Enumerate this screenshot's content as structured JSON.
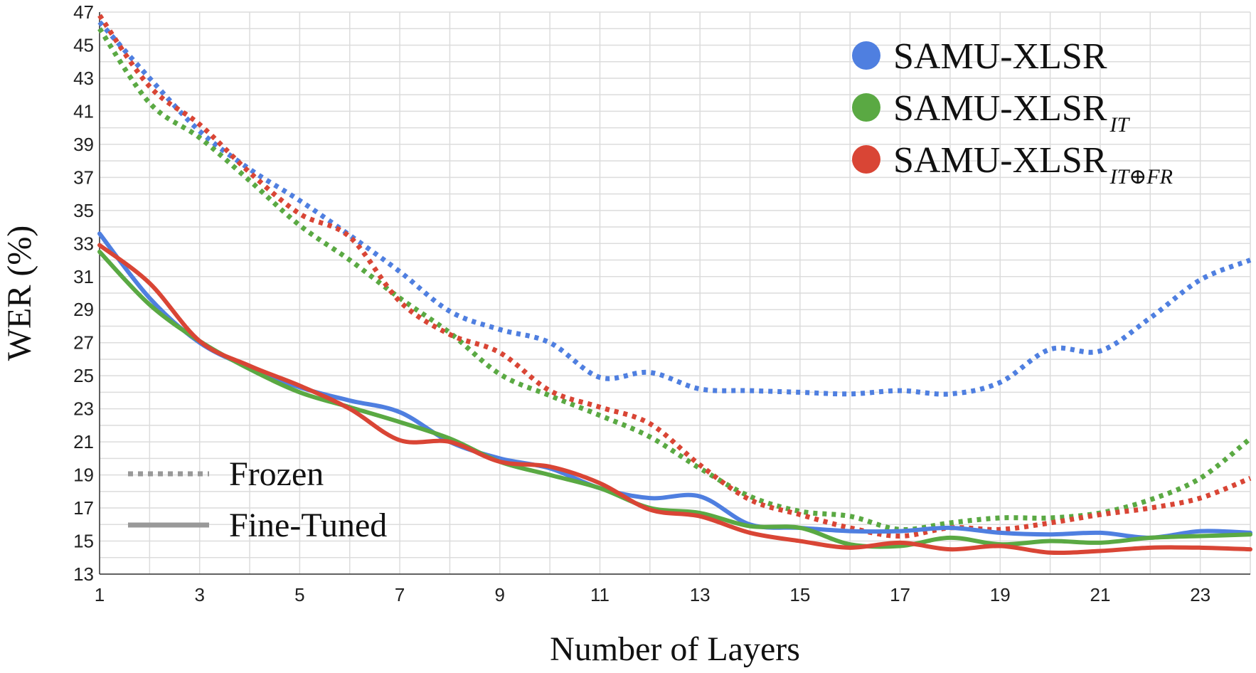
{
  "chart_data": {
    "type": "line",
    "title": "",
    "xlabel": "Number of Layers",
    "ylabel": "WER (%)",
    "xlim": [
      1,
      24
    ],
    "ylim": [
      13,
      47
    ],
    "xticks": [
      1,
      3,
      5,
      7,
      9,
      11,
      13,
      15,
      17,
      19,
      21,
      23
    ],
    "yticks": [
      13,
      15,
      17,
      19,
      21,
      23,
      25,
      27,
      29,
      31,
      33,
      35,
      37,
      39,
      41,
      43,
      45,
      47
    ],
    "grid": true,
    "x": [
      1,
      2,
      3,
      4,
      5,
      6,
      7,
      8,
      9,
      10,
      11,
      12,
      13,
      14,
      15,
      16,
      17,
      18,
      19,
      20,
      21,
      22,
      23,
      24
    ],
    "series": [
      {
        "name": "SAMU-XLSR",
        "label_main": "SAMU-XLSR",
        "label_sub": "",
        "mode": "Frozen",
        "color": "#4f7fe0",
        "values": [
          46.4,
          43.0,
          39.8,
          37.5,
          35.6,
          33.5,
          31.3,
          28.9,
          27.8,
          27.0,
          24.9,
          25.2,
          24.2,
          24.1,
          24.0,
          23.9,
          24.1,
          23.9,
          24.6,
          26.6,
          26.5,
          28.5,
          30.8,
          32.0
        ]
      },
      {
        "name": "SAMU-XLSR_IT",
        "label_main": "SAMU-XLSR",
        "label_sub": "IT",
        "mode": "Frozen",
        "color": "#5aa943",
        "values": [
          46.0,
          41.5,
          39.4,
          36.8,
          34.1,
          32.0,
          29.7,
          27.6,
          25.1,
          23.8,
          22.6,
          21.3,
          19.4,
          17.7,
          16.8,
          16.5,
          15.7,
          16.1,
          16.4,
          16.4,
          16.7,
          17.5,
          18.8,
          21.2
        ]
      },
      {
        "name": "SAMU-XLSR_IT⊕FR",
        "label_main": "SAMU-XLSR",
        "label_sub": "IT⊕FR",
        "mode": "Frozen",
        "color": "#d94535",
        "values": [
          46.8,
          42.5,
          40.2,
          37.3,
          34.8,
          33.4,
          29.5,
          27.5,
          26.4,
          24.1,
          23.1,
          22.1,
          19.6,
          17.5,
          16.6,
          15.8,
          15.3,
          15.8,
          15.7,
          16.1,
          16.6,
          17.0,
          17.6,
          18.8
        ]
      },
      {
        "name": "SAMU-XLSR",
        "label_main": "SAMU-XLSR",
        "label_sub": "",
        "mode": "Fine-Tuned",
        "color": "#4f7fe0",
        "values": [
          33.6,
          29.7,
          27.0,
          25.5,
          24.3,
          23.5,
          22.8,
          21.0,
          20.0,
          19.4,
          18.2,
          17.6,
          17.7,
          16.0,
          15.8,
          15.6,
          15.6,
          15.8,
          15.5,
          15.4,
          15.5,
          15.2,
          15.6,
          15.5
        ]
      },
      {
        "name": "SAMU-XLSR_IT",
        "label_main": "SAMU-XLSR",
        "label_sub": "IT",
        "mode": "Fine-Tuned",
        "color": "#5aa943",
        "values": [
          32.5,
          29.3,
          27.1,
          25.4,
          24.0,
          23.1,
          22.2,
          21.2,
          19.8,
          19.0,
          18.2,
          17.0,
          16.7,
          15.9,
          15.8,
          14.8,
          14.7,
          15.2,
          14.8,
          15.0,
          14.9,
          15.2,
          15.3,
          15.4
        ]
      },
      {
        "name": "SAMU-XLSR_IT⊕FR",
        "label_main": "SAMU-XLSR",
        "label_sub": "IT⊕FR",
        "mode": "Fine-Tuned",
        "color": "#d94535",
        "values": [
          32.9,
          30.6,
          27.1,
          25.6,
          24.4,
          23.0,
          21.1,
          21.0,
          19.8,
          19.5,
          18.5,
          16.9,
          16.5,
          15.5,
          15.0,
          14.6,
          14.9,
          14.5,
          14.7,
          14.3,
          14.4,
          14.6,
          14.6,
          14.5
        ]
      }
    ],
    "legend": {
      "placement": "top-right",
      "entries": [
        {
          "main": "SAMU-XLSR",
          "sub": "",
          "color": "#4f7fe0"
        },
        {
          "main": "SAMU-XLSR",
          "sub": "IT",
          "color": "#5aa943"
        },
        {
          "main": "SAMU-XLSR",
          "sub": "IT⊕FR",
          "color": "#d94535"
        }
      ]
    },
    "style_legend": {
      "placement": "bottom-left",
      "color": "#999999",
      "entries": [
        {
          "label": "Frozen",
          "dash": "dotted"
        },
        {
          "label": "Fine-Tuned",
          "dash": "solid"
        }
      ]
    }
  }
}
